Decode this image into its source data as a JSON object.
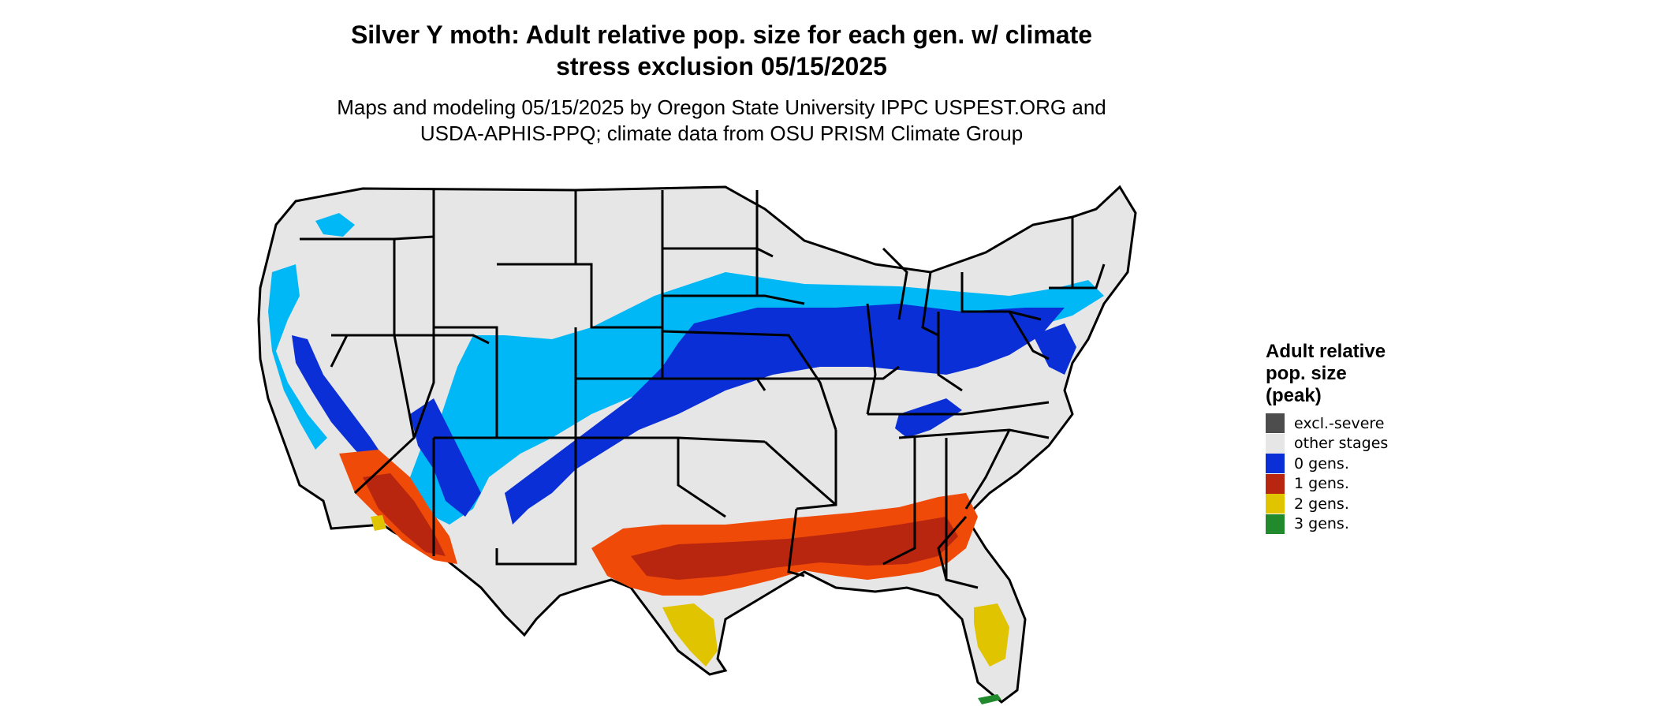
{
  "title": {
    "line1": "Silver Y moth: Adult relative pop. size for each gen. w/ climate",
    "line2": "stress exclusion 05/15/2025"
  },
  "subtitle": {
    "line1": "Maps and modeling 05/15/2025 by Oregon State University IPPC USPEST.ORG and",
    "line2": "USDA-APHIS-PPQ; climate data from OSU PRISM Climate Group"
  },
  "legend": {
    "title_line1": "Adult relative",
    "title_line2": "pop. size",
    "title_line3": "(peak)",
    "items": [
      {
        "label": "excl.-severe",
        "color": "#4d4d4d"
      },
      {
        "label": "other stages",
        "color": "#e6e6e6"
      },
      {
        "label": "0 gens.",
        "color": "#0a2fd6"
      },
      {
        "label": "1 gens.",
        "color": "#b8260f"
      },
      {
        "label": "2 gens.",
        "color": "#e0c400"
      },
      {
        "label": "3 gens.",
        "color": "#218a2d"
      }
    ]
  },
  "map": {
    "region": "contiguous-united-states",
    "background_color": "#e6e6e6",
    "border_color": "#000000",
    "zone_colors": {
      "light_blue": "#00b8f5",
      "blue": "#0a2fd6",
      "orange": "#f04a08",
      "red": "#b8260f",
      "yellow": "#e0c400",
      "green": "#218a2d"
    }
  }
}
